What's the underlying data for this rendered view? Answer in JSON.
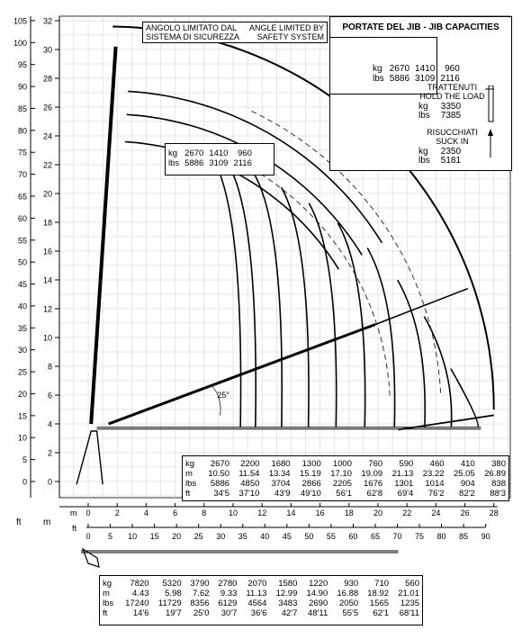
{
  "title": "PORTATE DEL JIB - JIB CAPACITIES",
  "limit_note_it": [
    "ANGOLO LIMITATO DAL",
    "SISTEMA DI SICUREZZA"
  ],
  "limit_note_en": [
    "ANGLE LIMITED BY",
    "SAFETY SYSTEM"
  ],
  "units": {
    "ft": "ft",
    "m": "m",
    "kg": "kg",
    "lbs": "lbs"
  },
  "y_axis": {
    "ft_ticks": [
      "105",
      "100",
      "95",
      "90",
      "85",
      "80",
      "75",
      "70",
      "65",
      "60",
      "55",
      "50",
      "45",
      "40",
      "35",
      "30",
      "25",
      "20",
      "15",
      "10",
      "5",
      "0"
    ],
    "m_ticks": [
      "32",
      "30",
      "28",
      "26",
      "24",
      "22",
      "20",
      "18",
      "16",
      "14",
      "12",
      "10",
      "8",
      "6",
      "4",
      "2",
      "0"
    ]
  },
  "x_axis": {
    "m_ticks": [
      "0",
      "2",
      "4",
      "6",
      "8",
      "10",
      "12",
      "14",
      "16",
      "18",
      "20",
      "22",
      "24",
      "26",
      "28"
    ],
    "ft_ticks": [
      "0",
      "5",
      "10",
      "15",
      "20",
      "25",
      "30",
      "35",
      "40",
      "45",
      "50",
      "55",
      "60",
      "65",
      "70",
      "75",
      "80",
      "85",
      "90"
    ]
  },
  "jib_capacities": {
    "kg": [
      "2670",
      "1410",
      "960"
    ],
    "lbs": [
      "5886",
      "3109",
      "2116"
    ]
  },
  "hold_load": {
    "label": [
      "TRATTENUTI",
      "HOLD THE LOAD"
    ],
    "kg": "3350",
    "lbs": "7385"
  },
  "suck_in": {
    "label": [
      "RISUCCHIATI",
      "SUCK IN"
    ],
    "kg": "2350",
    "lbs": "5181"
  },
  "angle_label": "25°",
  "main_table": {
    "kg": [
      "2670",
      "2200",
      "1680",
      "1300",
      "1000",
      "760",
      "590",
      "460",
      "410",
      "380"
    ],
    "m": [
      "10.50",
      "11.54",
      "13.34",
      "15.19",
      "17.10",
      "19.09",
      "21.13",
      "23.22",
      "25.05",
      "26.89"
    ],
    "lbs": [
      "5886",
      "4850",
      "3704",
      "2866",
      "2205",
      "1676",
      "1301",
      "1014",
      "904",
      "838"
    ],
    "ft": [
      "34'5",
      "37'10",
      "43'9",
      "49'10",
      "56'1",
      "62'8",
      "69'4",
      "76'2",
      "82'2",
      "88'3"
    ]
  },
  "bottom_table": {
    "kg": [
      "7820",
      "5320",
      "3790",
      "2780",
      "2070",
      "1580",
      "1220",
      "930",
      "710",
      "560"
    ],
    "m": [
      "4.43",
      "5.98",
      "7.62",
      "9.33",
      "11.13",
      "12.99",
      "14.90",
      "16.88",
      "18.92",
      "21.01"
    ],
    "lbs": [
      "17240",
      "11729",
      "8356",
      "6129",
      "4564",
      "3483",
      "2690",
      "2050",
      "1565",
      "1235"
    ],
    "ft": [
      "14'6",
      "19'7",
      "25'0",
      "30'7",
      "36'6",
      "42'7",
      "48'11",
      "55'5",
      "62'1",
      "68'11"
    ]
  },
  "colors": {
    "line": "#000000",
    "grid": "#cccccc",
    "dash": "#333333"
  }
}
